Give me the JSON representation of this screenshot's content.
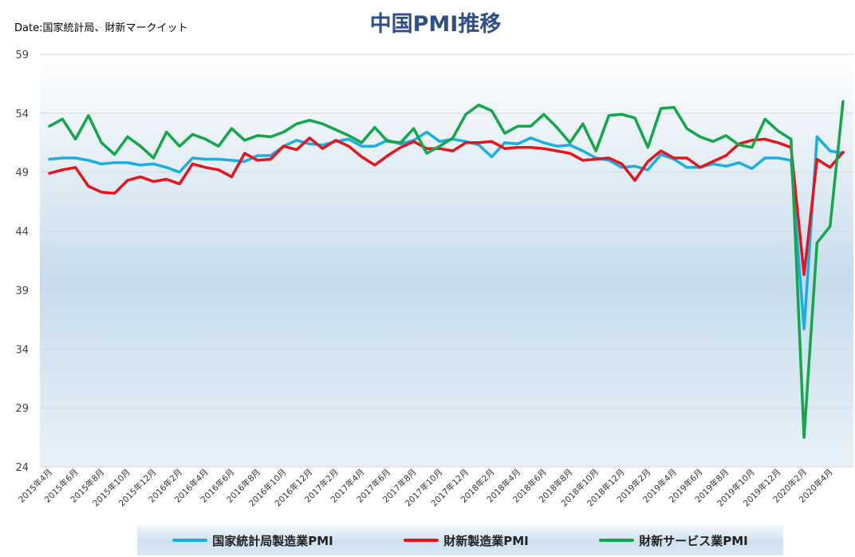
{
  "chart_data": {
    "type": "line",
    "title": "中国PMI推移",
    "source": "Date:国家統計局、財新マークイット",
    "ylim": [
      24,
      59
    ],
    "yticks": [
      24,
      29,
      34,
      39,
      44,
      49,
      54,
      59
    ],
    "grid": true,
    "legend_position": "bottom",
    "x": [
      "2015年4月",
      "2015年5月",
      "2015年6月",
      "2015年7月",
      "2015年8月",
      "2015年9月",
      "2015年10月",
      "2015年11月",
      "2015年12月",
      "2016年1月",
      "2016年2月",
      "2016年3月",
      "2016年4月",
      "2016年5月",
      "2016年6月",
      "2016年7月",
      "2016年8月",
      "2016年9月",
      "2016年10月",
      "2016年11月",
      "2016年12月",
      "2017年1月",
      "2017年2月",
      "2017年3月",
      "2017年4月",
      "2017年5月",
      "2017年6月",
      "2017年7月",
      "2017年8月",
      "2017年9月",
      "2017年10月",
      "2017年11月",
      "2017年12月",
      "2018年1月",
      "2018年2月",
      "2018年3月",
      "2018年4月",
      "2018年5月",
      "2018年6月",
      "2018年7月",
      "2018年8月",
      "2018年9月",
      "2018年10月",
      "2018年11月",
      "2018年12月",
      "2019年1月",
      "2019年2月",
      "2019年3月",
      "2019年4月",
      "2019年5月",
      "2019年6月",
      "2019年7月",
      "2019年8月",
      "2019年9月",
      "2019年10月",
      "2019年11月",
      "2019年12月",
      "2020年1月",
      "2020年2月",
      "2020年3月",
      "2020年4月",
      "2020年5月"
    ],
    "xtick_labels": [
      "2015年4月",
      "2015年6月",
      "2015年8月",
      "2015年10月",
      "2015年12月",
      "2016年2月",
      "2016年4月",
      "2016年6月",
      "2016年8月",
      "2016年10月",
      "2016年12月",
      "2017年2月",
      "2017年4月",
      "2017年6月",
      "2017年8月",
      "2017年10月",
      "2017年12月",
      "2018年2月",
      "2018年4月",
      "2018年6月",
      "2018年8月",
      "2018年10月",
      "2018年12月",
      "2019年2月",
      "2019年4月",
      "2019年6月",
      "2019年8月",
      "2019年10月",
      "2019年12月",
      "2020年2月",
      "2020年4月"
    ],
    "series": [
      {
        "name": "国家統計局製造業PMI",
        "color": "#1aaee6",
        "values": [
          50.1,
          50.2,
          50.2,
          50.0,
          49.7,
          49.8,
          49.8,
          49.6,
          49.7,
          49.4,
          49.0,
          50.2,
          50.1,
          50.1,
          50.0,
          49.9,
          50.4,
          50.4,
          51.2,
          51.7,
          51.4,
          51.3,
          51.6,
          51.8,
          51.2,
          51.2,
          51.7,
          51.4,
          51.7,
          52.4,
          51.6,
          51.8,
          51.6,
          51.3,
          50.3,
          51.5,
          51.4,
          51.9,
          51.5,
          51.2,
          51.3,
          50.8,
          50.2,
          50.0,
          49.4,
          49.5,
          49.2,
          50.5,
          50.1,
          49.4,
          49.4,
          49.7,
          49.5,
          49.8,
          49.3,
          50.2,
          50.2,
          50.0,
          35.7,
          52.0,
          50.8,
          50.6
        ]
      },
      {
        "name": "財新製造業PMI",
        "color": "#e8141c",
        "values": [
          48.9,
          49.2,
          49.4,
          47.8,
          47.3,
          47.2,
          48.3,
          48.6,
          48.2,
          48.4,
          48.0,
          49.7,
          49.4,
          49.2,
          48.6,
          50.6,
          50.0,
          50.1,
          51.2,
          50.9,
          51.9,
          51.0,
          51.7,
          51.2,
          50.3,
          49.6,
          50.4,
          51.1,
          51.6,
          51.0,
          51.0,
          50.8,
          51.5,
          51.5,
          51.6,
          51.0,
          51.1,
          51.1,
          51.0,
          50.8,
          50.6,
          50.0,
          50.1,
          50.2,
          49.7,
          48.3,
          49.9,
          50.8,
          50.2,
          50.2,
          49.4,
          49.9,
          50.4,
          51.4,
          51.7,
          51.8,
          51.5,
          51.1,
          40.3,
          50.1,
          49.4,
          50.7
        ]
      },
      {
        "name": "財新サービス業PMI",
        "color": "#10a848",
        "values": [
          52.9,
          53.5,
          51.8,
          53.8,
          51.5,
          50.5,
          52.0,
          51.2,
          50.2,
          52.4,
          51.2,
          52.2,
          51.8,
          51.2,
          52.7,
          51.7,
          52.1,
          52.0,
          52.4,
          53.1,
          53.4,
          53.1,
          52.6,
          52.1,
          51.5,
          52.8,
          51.6,
          51.5,
          52.7,
          50.6,
          51.2,
          51.9,
          53.9,
          54.7,
          54.2,
          52.3,
          52.9,
          52.9,
          53.9,
          52.8,
          51.5,
          53.1,
          50.8,
          53.8,
          53.9,
          53.6,
          51.1,
          54.4,
          54.5,
          52.7,
          52.0,
          51.6,
          52.1,
          51.3,
          51.1,
          53.5,
          52.5,
          51.8,
          26.5,
          43.0,
          44.4,
          55.0
        ]
      }
    ]
  }
}
